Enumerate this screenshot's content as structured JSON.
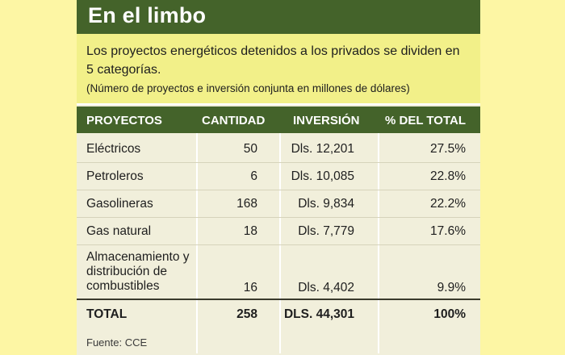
{
  "title": "En el limbo",
  "subtitle": "Los proyectos energéticos detenidos a los privados se dividen en 5 categorías.",
  "note": "(Número de proyectos e inversión conjunta en millones de dólares)",
  "source": "Fuente: CCE",
  "colors": {
    "header_green": "#44632a",
    "subtitle_yellow": "#f2f089",
    "table_bg": "#f1efdb",
    "page_bg": "#fdf6a4"
  },
  "chart_data": {
    "type": "table",
    "title": "En el limbo",
    "columns": [
      "PROYECTOS",
      "CANTIDAD",
      "INVERSIÓN",
      "% DEL TOTAL"
    ],
    "rows": [
      {
        "proyecto": "Eléctricos",
        "cantidad": "50",
        "inversion": "Dls. 12,201",
        "porcentaje": "27.5%"
      },
      {
        "proyecto": "Petroleros",
        "cantidad": "6",
        "inversion": "Dls. 10,085",
        "porcentaje": "22.8%"
      },
      {
        "proyecto": "Gasolineras",
        "cantidad": "168",
        "inversion": "Dls. 9,834",
        "porcentaje": "22.2%"
      },
      {
        "proyecto": "Gas natural",
        "cantidad": "18",
        "inversion": "Dls. 7,779",
        "porcentaje": "17.6%"
      },
      {
        "proyecto": "Almacenamiento y distribución de combustibles",
        "cantidad": "16",
        "inversion": "Dls. 4,402",
        "porcentaje": "9.9%"
      }
    ],
    "total": {
      "proyecto": "TOTAL",
      "cantidad": "258",
      "inversion": "DLS. 44,301",
      "porcentaje": "100%"
    }
  }
}
